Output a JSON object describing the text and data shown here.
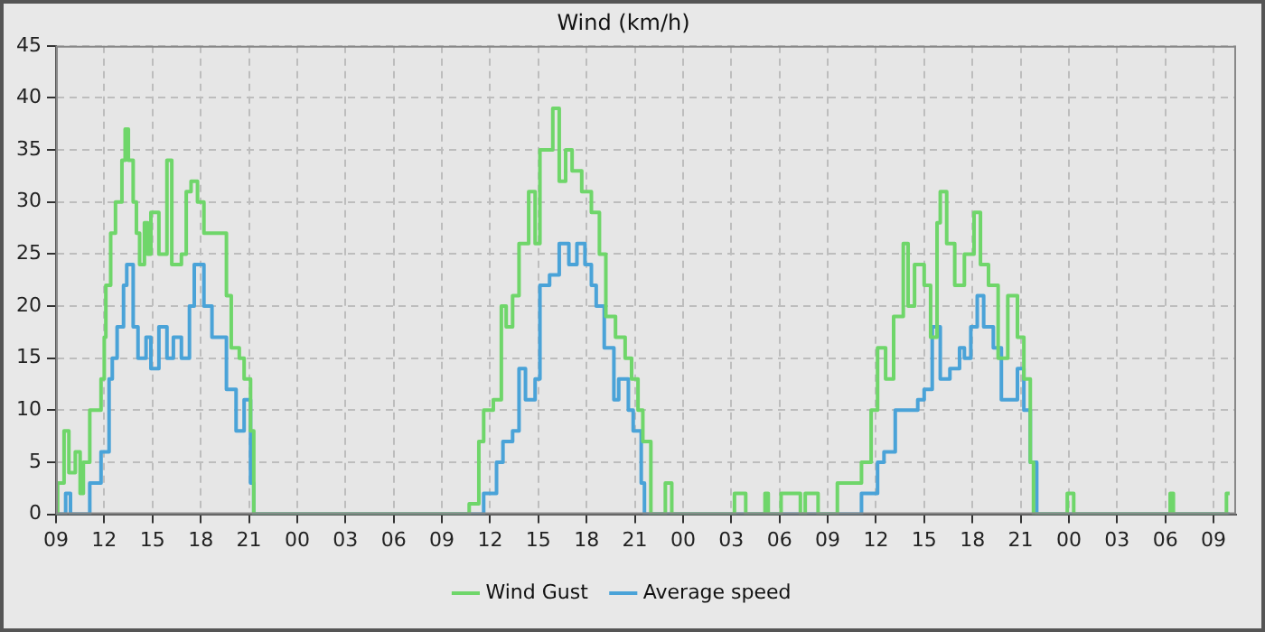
{
  "chart_data": {
    "type": "step",
    "title": "Wind (km/h)",
    "marker": "none",
    "grid": true,
    "legend": "bottom",
    "xlim": [
      9,
      82.4
    ],
    "xticks": [
      {
        "value": 9,
        "label": "09"
      },
      {
        "value": 12,
        "label": "12"
      },
      {
        "value": 15,
        "label": "15"
      },
      {
        "value": 18,
        "label": "18"
      },
      {
        "value": 21,
        "label": "21"
      },
      {
        "value": 24,
        "label": "00"
      },
      {
        "value": 27,
        "label": "03"
      },
      {
        "value": 30,
        "label": "06"
      },
      {
        "value": 33,
        "label": "09"
      },
      {
        "value": 36,
        "label": "12"
      },
      {
        "value": 39,
        "label": "15"
      },
      {
        "value": 42,
        "label": "18"
      },
      {
        "value": 45,
        "label": "21"
      },
      {
        "value": 48,
        "label": "00"
      },
      {
        "value": 51,
        "label": "03"
      },
      {
        "value": 54,
        "label": "06"
      },
      {
        "value": 57,
        "label": "09"
      },
      {
        "value": 60,
        "label": "12"
      },
      {
        "value": 63,
        "label": "15"
      },
      {
        "value": 66,
        "label": "18"
      },
      {
        "value": 69,
        "label": "21"
      },
      {
        "value": 72,
        "label": "00"
      },
      {
        "value": 75,
        "label": "03"
      },
      {
        "value": 78,
        "label": "06"
      },
      {
        "value": 81,
        "label": "09"
      }
    ],
    "ylim": [
      0,
      45
    ],
    "yticks": [
      0,
      5,
      10,
      15,
      20,
      25,
      30,
      35,
      40,
      45
    ],
    "series": [
      {
        "name": "Wind Gust",
        "color": "#6fd66a",
        "x": [
          9,
          9.1,
          9.5,
          9.8,
          10.2,
          10.5,
          10.7,
          11.1,
          11.8,
          12.0,
          12.1,
          12.4,
          12.7,
          13.1,
          13.3,
          13.5,
          13.8,
          14.0,
          14.2,
          14.5,
          14.7,
          14.9,
          15.4,
          15.9,
          16.2,
          16.8,
          17.1,
          17.4,
          17.8,
          18.2,
          18.8,
          19.6,
          19.9,
          20.4,
          20.7,
          21.1,
          21.3,
          34.7,
          35.3,
          35.6,
          36.2,
          36.7,
          37.0,
          37.4,
          37.8,
          38.4,
          38.8,
          39.1,
          39.7,
          39.9,
          40.3,
          40.7,
          41.1,
          41.7,
          42.3,
          42.8,
          43.2,
          43.8,
          44.4,
          44.8,
          45.2,
          45.5,
          46.0,
          46.9,
          47.3,
          51.2,
          51.9,
          53.1,
          53.3,
          54.1,
          55.3,
          55.6,
          56.4,
          57.6,
          59.1,
          59.7,
          60.1,
          60.6,
          61.1,
          61.7,
          62.0,
          62.4,
          63.0,
          63.4,
          63.8,
          64.0,
          64.4,
          64.9,
          65.5,
          66.1,
          66.5,
          67.0,
          67.6,
          68.2,
          68.8,
          69.2,
          69.6,
          69.8,
          71.9,
          72.3,
          78.3,
          78.5,
          81.8,
          82.0
        ],
        "values": [
          0,
          3,
          8,
          4,
          6,
          2,
          5,
          10,
          13,
          17,
          22,
          27,
          30,
          34,
          37,
          34,
          30,
          27,
          24,
          28,
          25,
          29,
          25,
          34,
          24,
          25,
          31,
          32,
          30,
          27,
          27,
          21,
          16,
          15,
          13,
          8,
          0,
          1,
          7,
          10,
          11,
          20,
          18,
          21,
          26,
          31,
          26,
          35,
          35,
          39,
          32,
          35,
          33,
          31,
          29,
          25,
          19,
          17,
          15,
          13,
          10,
          7,
          0,
          3,
          0,
          2,
          0,
          2,
          0,
          2,
          0,
          2,
          0,
          3,
          5,
          10,
          16,
          13,
          19,
          26,
          20,
          24,
          22,
          17,
          28,
          31,
          26,
          22,
          25,
          29,
          24,
          22,
          15,
          21,
          17,
          13,
          5,
          0,
          2,
          0,
          2,
          0,
          2,
          2
        ]
      },
      {
        "name": "Average speed",
        "color": "#4aa3d8",
        "x": [
          9,
          9.6,
          9.9,
          11.1,
          11.8,
          12.3,
          12.5,
          12.8,
          13.2,
          13.4,
          13.8,
          14.1,
          14.6,
          14.9,
          15.4,
          15.9,
          16.3,
          16.8,
          17.3,
          17.6,
          18.2,
          18.7,
          19.2,
          19.6,
          20.2,
          20.7,
          21.1,
          21.3,
          35.6,
          36.4,
          36.8,
          37.4,
          37.8,
          38.2,
          38.8,
          39.1,
          39.7,
          40.3,
          40.9,
          41.4,
          41.9,
          42.3,
          42.6,
          43.1,
          43.7,
          44.0,
          44.6,
          44.9,
          45.4,
          45.6,
          59.1,
          60.1,
          60.5,
          61.2,
          62.0,
          62.6,
          63.0,
          63.5,
          64.0,
          64.6,
          65.2,
          65.5,
          65.9,
          66.3,
          66.7,
          67.3,
          67.8,
          68.8,
          69.2,
          69.6,
          70.0,
          82.0
        ],
        "values": [
          0,
          2,
          0,
          3,
          6,
          13,
          15,
          18,
          22,
          24,
          18,
          15,
          17,
          14,
          18,
          15,
          17,
          15,
          20,
          24,
          20,
          17,
          17,
          12,
          8,
          11,
          3,
          0,
          2,
          5,
          7,
          8,
          14,
          11,
          13,
          22,
          23,
          26,
          24,
          26,
          24,
          22,
          20,
          16,
          11,
          13,
          10,
          8,
          3,
          0,
          2,
          5,
          6,
          10,
          10,
          11,
          12,
          18,
          13,
          14,
          16,
          15,
          18,
          21,
          18,
          16,
          11,
          14,
          10,
          5,
          0,
          0
        ]
      }
    ]
  }
}
